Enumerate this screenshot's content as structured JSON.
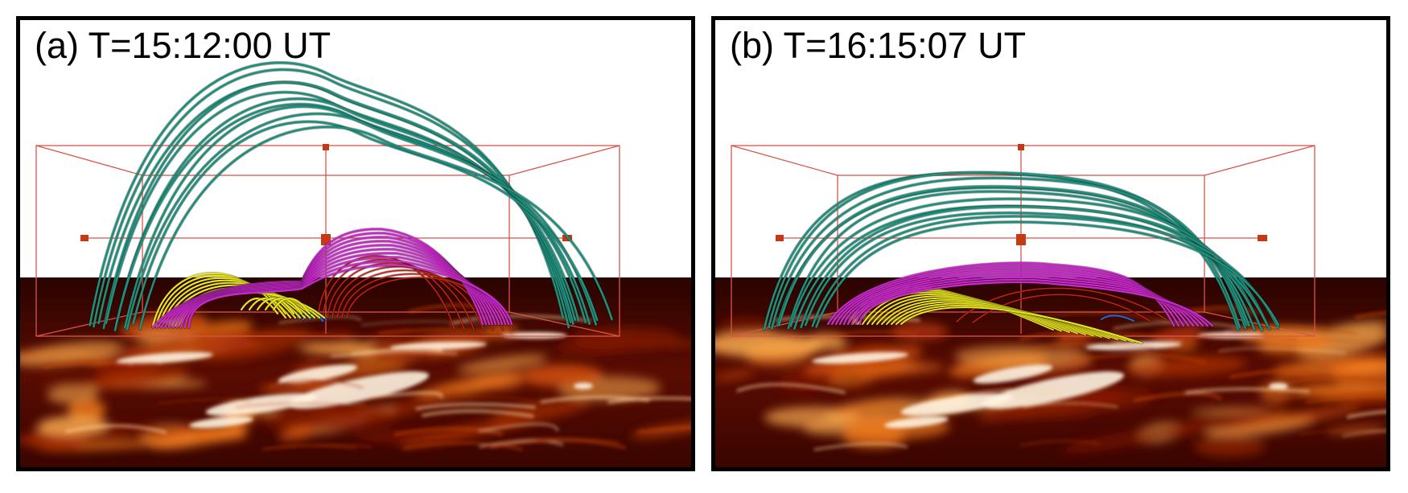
{
  "panels": [
    {
      "id": "a",
      "label": "(a) T=15:12:00 UT"
    },
    {
      "id": "b",
      "label": "(b) T=16:15:07 UT"
    }
  ],
  "colors": {
    "frame": "#000000",
    "box": "#d9554a",
    "handle": "#c53a15",
    "loops_outer": "#1f8f7c",
    "loops_magenta": "#c929c9",
    "loops_yellow": "#e8e520",
    "loops_red": "#c8200f",
    "loops_blue": "#2d62c8",
    "surface_dark": "#3a0500"
  }
}
